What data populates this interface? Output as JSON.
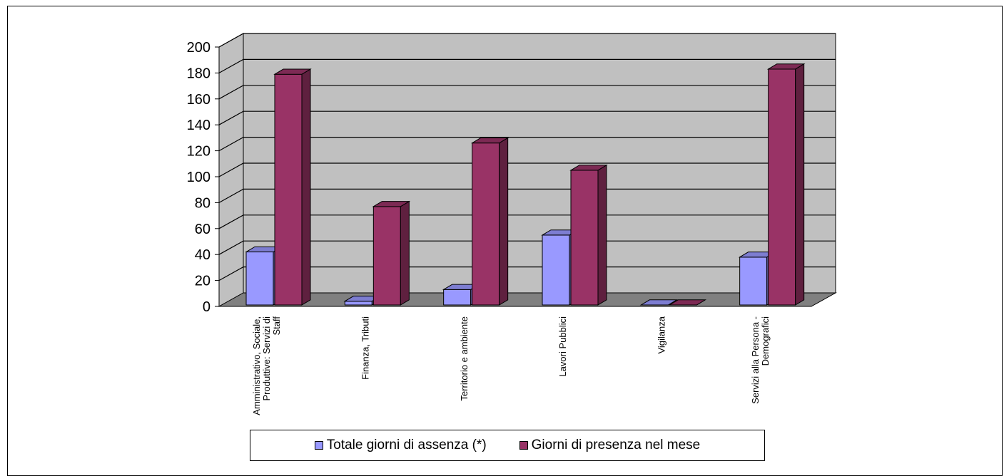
{
  "chart_data": {
    "type": "bar",
    "subtype": "3d-clustered-column",
    "categories": [
      "Amministrativo, Sociale, Produttive: Servizi di Staff",
      "Finanza, Tributi",
      "Territorio e ambiente",
      "Lavori Pubblici",
      "Vigilanza",
      "Servizi alla Persona - Demografici"
    ],
    "series": [
      {
        "name": "Totale giorni di assenza (*)",
        "values": [
          42,
          4,
          13,
          55,
          0,
          38
        ],
        "color": "#9999ff"
      },
      {
        "name": "Giorni di presenza nel mese",
        "values": [
          179,
          77,
          126,
          105,
          0,
          183
        ],
        "color": "#993366"
      }
    ],
    "yticks": [
      "0",
      "20",
      "40",
      "60",
      "80",
      "100",
      "120",
      "140",
      "160",
      "180",
      "200"
    ],
    "ylim": [
      0,
      200
    ],
    "grid": true,
    "legend_position": "bottom",
    "colors": {
      "wall": "#c0c0c0",
      "floor": "#808080"
    }
  }
}
